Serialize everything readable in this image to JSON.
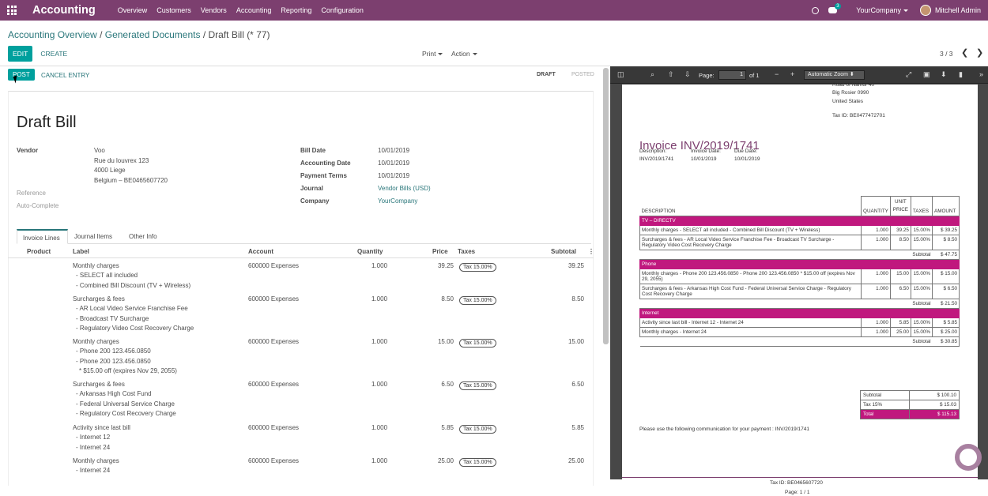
{
  "nav": {
    "app_title": "Accounting",
    "menu": [
      "Overview",
      "Customers",
      "Vendors",
      "Accounting",
      "Reporting",
      "Configuration"
    ],
    "message_count": "3",
    "company": "YourCompany",
    "user": "Mitchell Admin"
  },
  "breadcrumb": {
    "part1": "Accounting Overview",
    "sep1": "/",
    "part2": "Generated Documents",
    "sep2": "/",
    "current": "Draft Bill (* 77)"
  },
  "control": {
    "edit": "EDIT",
    "create": "CREATE",
    "print": "Print",
    "action": "Action",
    "pager": "3 / 3"
  },
  "status": {
    "post": "POST",
    "cancel": "CANCEL ENTRY",
    "draft": "DRAFT",
    "posted": "POSTED"
  },
  "form": {
    "title": "Draft Bill",
    "vendor_label": "Vendor",
    "vendor_lines": [
      "Voo",
      "Rue du louvrex 123",
      "4000 Liege",
      "Belgium – BE0465607720"
    ],
    "reference_label": "Reference",
    "auto_complete_label": "Auto-Complete",
    "bill_date_label": "Bill Date",
    "bill_date": "10/01/2019",
    "accounting_date_label": "Accounting Date",
    "accounting_date": "10/01/2019",
    "payment_terms_label": "Payment Terms",
    "payment_terms": "10/01/2019",
    "journal_label": "Journal",
    "journal": "Vendor Bills (USD)",
    "company_label": "Company",
    "company": "YourCompany"
  },
  "tabs": [
    "Invoice Lines",
    "Journal Items",
    "Other Info"
  ],
  "lines_header": {
    "product": "Product",
    "label": "Label",
    "account": "Account",
    "quantity": "Quantity",
    "price": "Price",
    "taxes": "Taxes",
    "subtotal": "Subtotal",
    "options_icon": "⋮"
  },
  "lines": [
    {
      "label": [
        "Monthly charges",
        "- SELECT all included",
        "- Combined Bill Discount (TV + Wireless)"
      ],
      "account": "600000 Expenses",
      "quantity": "1.000",
      "price": "39.25",
      "tax": "Tax 15.00%",
      "subtotal": "39.25"
    },
    {
      "label": [
        "Surcharges & fees",
        "- AR Local Video Service Franchise Fee",
        "- Broadcast TV Surcharge",
        "- Regulatory Video Cost Recovery Charge"
      ],
      "account": "600000 Expenses",
      "quantity": "1.000",
      "price": "8.50",
      "tax": "Tax 15.00%",
      "subtotal": "8.50"
    },
    {
      "label": [
        "Monthly charges",
        "- Phone 200 123.456.0850",
        "- Phone 200 123.456.0850",
        "* $15.00 off (expires Nov 29, 2055)"
      ],
      "account": "600000 Expenses",
      "quantity": "1.000",
      "price": "15.00",
      "tax": "Tax 15.00%",
      "subtotal": "15.00"
    },
    {
      "label": [
        "Surcharges & fees",
        "- Arkansas High Cost Fund",
        "- Federal Universal Service Charge",
        "- Regulatory Cost Recovery Charge"
      ],
      "account": "600000 Expenses",
      "quantity": "1.000",
      "price": "6.50",
      "tax": "Tax 15.00%",
      "subtotal": "6.50"
    },
    {
      "label": [
        "Activity since last bill",
        "- Internet 12",
        "- Internet 24"
      ],
      "account": "600000 Expenses",
      "quantity": "1.000",
      "price": "5.85",
      "tax": "Tax 15.00%",
      "subtotal": "5.85"
    },
    {
      "label": [
        "Monthly charges",
        "- Internet 24"
      ],
      "account": "600000 Expenses",
      "quantity": "1.000",
      "price": "25.00",
      "tax": "Tax 15.00%",
      "subtotal": "25.00"
    }
  ],
  "pdf_viewer": {
    "page_label": "Page:",
    "page": "1",
    "of": "of 1",
    "zoom": "Automatic Zoom"
  },
  "pdf": {
    "addr_lines": [
      "Road of Namur 40",
      "Big Rosier 0990",
      "United States"
    ],
    "tax_id": "Tax ID: BE0477472701",
    "title": "Invoice INV/2019/1741",
    "desc_label": "Description:",
    "desc": "INV/2019/1741",
    "inv_date_label": "Invoice Date:",
    "inv_date": "10/01/2019",
    "due_date_label": "Due Date:",
    "due_date": "10/01/2019",
    "headers": {
      "description": "DESCRIPTION",
      "quantity": "QUANTITY",
      "unit": "UNIT",
      "price": "PRICE",
      "taxes": "TAXES",
      "amount": "AMOUNT"
    },
    "sections": [
      {
        "name": "TV – DIRECTV",
        "rows": [
          {
            "d": "Monthly charges - SELECT all included - Combined Bill Discount (TV + Wireless)",
            "q": "1.000",
            "p": "39.25",
            "t": "15.00%",
            "a": "$ 39.25"
          },
          {
            "d": "Surcharges & fees - AR Local Video Service Franchise Fee - Broadcast TV Surcharge - Regulatory Video Cost Recovery Charge",
            "q": "1.000",
            "p": "8.50",
            "t": "15.00%",
            "a": "$ 8.50"
          }
        ],
        "subtotal_label": "Subtotal",
        "subtotal": "$ 47.75"
      },
      {
        "name": "Phone",
        "rows": [
          {
            "d": "Monthly charges - Phone 200 123.456.0850 - Phone 200 123.456.0850 * $15.00 off (expires Nov 29, 2055)",
            "q": "1.000",
            "p": "15.00",
            "t": "15.00%",
            "a": "$ 15.00"
          },
          {
            "d": "Surcharges & fees - Arkansas High Cost Fund - Federal Universal Service Charge - Regulatory Cost Recovery Charge",
            "q": "1.000",
            "p": "6.50",
            "t": "15.00%",
            "a": "$ 6.50"
          }
        ],
        "subtotal_label": "Subtotal",
        "subtotal": "$ 21.50"
      },
      {
        "name": "Internet",
        "rows": [
          {
            "d": "Activity since last bill - Internet 12 - Internet 24",
            "q": "1.000",
            "p": "5.85",
            "t": "15.00%",
            "a": "$ 5.85"
          },
          {
            "d": "Monthly charges - Internet 24",
            "q": "1.000",
            "p": "25.00",
            "t": "15.00%",
            "a": "$ 25.00"
          }
        ],
        "subtotal_label": "Subtotal",
        "subtotal": "$ 30.85"
      }
    ],
    "totals": {
      "subtotal_label": "Subtotal",
      "subtotal": "$ 100.10",
      "tax_label": "Tax 15%",
      "tax": "$ 15.03",
      "total_label": "Total",
      "total": "$ 115.13"
    },
    "communication": "Please use the following communication for your payment : INV/2019/1741",
    "footer_tax": "Tax ID: BE0465607720",
    "footer_page": "Page: 1 / 1"
  },
  "colors": {
    "brand": "#7c3f6f",
    "teal": "#00a09d",
    "invoice_section": "#c0187e"
  }
}
